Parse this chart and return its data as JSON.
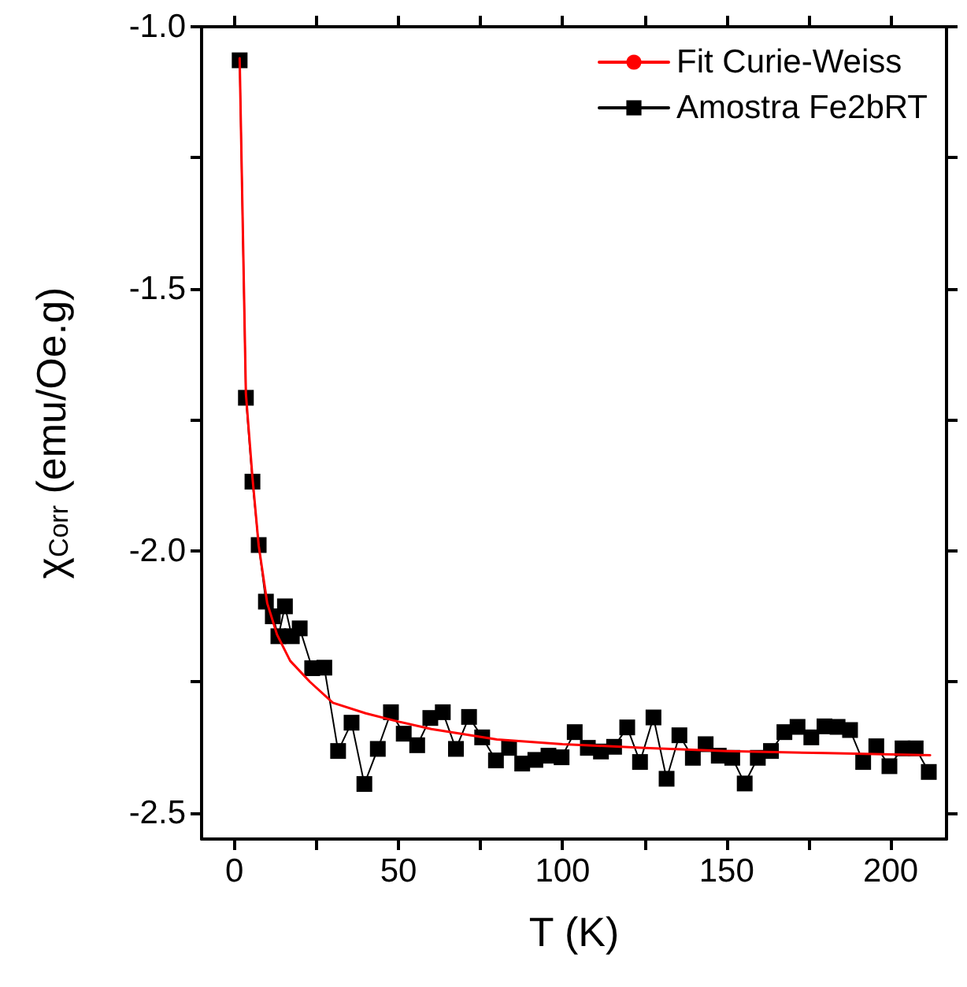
{
  "chart_data": {
    "type": "line",
    "xlabel": "T (K)",
    "ylabel": "χ$_{Corr}$ (emu/Oe.g)",
    "xlim": [
      -10,
      217
    ],
    "ylim": [
      -2.55,
      -1.0
    ],
    "xticks": [
      0,
      {
        "value": 25,
        "label": null
      },
      50,
      {
        "value": 75,
        "label": null
      },
      100,
      {
        "value": 125,
        "label": null
      },
      150,
      {
        "value": 175,
        "label": null
      },
      200
    ],
    "yticks": [
      {
        "value": -1.0,
        "label": "-1.0"
      },
      {
        "value": -1.25,
        "label": null
      },
      -1.5,
      {
        "value": -1.75,
        "label": null
      },
      {
        "value": -2.0,
        "label": "-2.0"
      },
      {
        "value": -2.25,
        "label": null
      },
      -2.5
    ],
    "grid": false,
    "legend": "top right",
    "series": [
      {
        "name": "Fit Curie-Weiss",
        "color": "#ff0000",
        "marker": "none",
        "line_style": "solid",
        "x": [
          1.6,
          3.5,
          5.5,
          7.4,
          10,
          13,
          17,
          23,
          30,
          40,
          50,
          60,
          80,
          100,
          125,
          150,
          180,
          212
        ],
        "values": [
          -1.06,
          -1.7,
          -1.86,
          -1.99,
          -2.1,
          -2.16,
          -2.21,
          -2.25,
          -2.29,
          -2.31,
          -2.326,
          -2.34,
          -2.36,
          -2.369,
          -2.376,
          -2.382,
          -2.386,
          -2.39
        ]
      },
      {
        "name": "Amostra Fe2bRT",
        "color": "#000000",
        "marker": "square",
        "line_style": "solid",
        "x": [
          1.6,
          3.5,
          5.5,
          7.4,
          9.6,
          11.7,
          13.4,
          15.4,
          17.5,
          19.9,
          23.7,
          27.4,
          31.6,
          35.7,
          39.6,
          43.7,
          47.7,
          51.6,
          55.7,
          59.7,
          63.5,
          67.5,
          71.5,
          75.5,
          79.7,
          83.7,
          87.7,
          91.7,
          95.7,
          99.7,
          103.7,
          107.7,
          111.7,
          115.7,
          119.7,
          123.6,
          127.7,
          131.7,
          135.6,
          139.7,
          143.6,
          147.6,
          151.7,
          155.5,
          159.5,
          163.5,
          167.6,
          171.6,
          175.8,
          179.8,
          183.8,
          187.6,
          191.6,
          195.6,
          199.6,
          203.6,
          207.6,
          211.6
        ],
        "values": [
          -1.064,
          -1.708,
          -1.868,
          -1.989,
          -2.097,
          -2.125,
          -2.163,
          -2.106,
          -2.163,
          -2.148,
          -2.224,
          -2.223,
          -2.382,
          -2.328,
          -2.445,
          -2.378,
          -2.308,
          -2.349,
          -2.371,
          -2.319,
          -2.308,
          -2.378,
          -2.317,
          -2.356,
          -2.4,
          -2.376,
          -2.406,
          -2.399,
          -2.391,
          -2.394,
          -2.346,
          -2.376,
          -2.383,
          -2.374,
          -2.337,
          -2.403,
          -2.318,
          -2.435,
          -2.352,
          -2.395,
          -2.369,
          -2.391,
          -2.395,
          -2.444,
          -2.395,
          -2.382,
          -2.346,
          -2.336,
          -2.356,
          -2.335,
          -2.336,
          -2.342,
          -2.403,
          -2.373,
          -2.411,
          -2.377,
          -2.377,
          -2.422
        ]
      }
    ]
  }
}
